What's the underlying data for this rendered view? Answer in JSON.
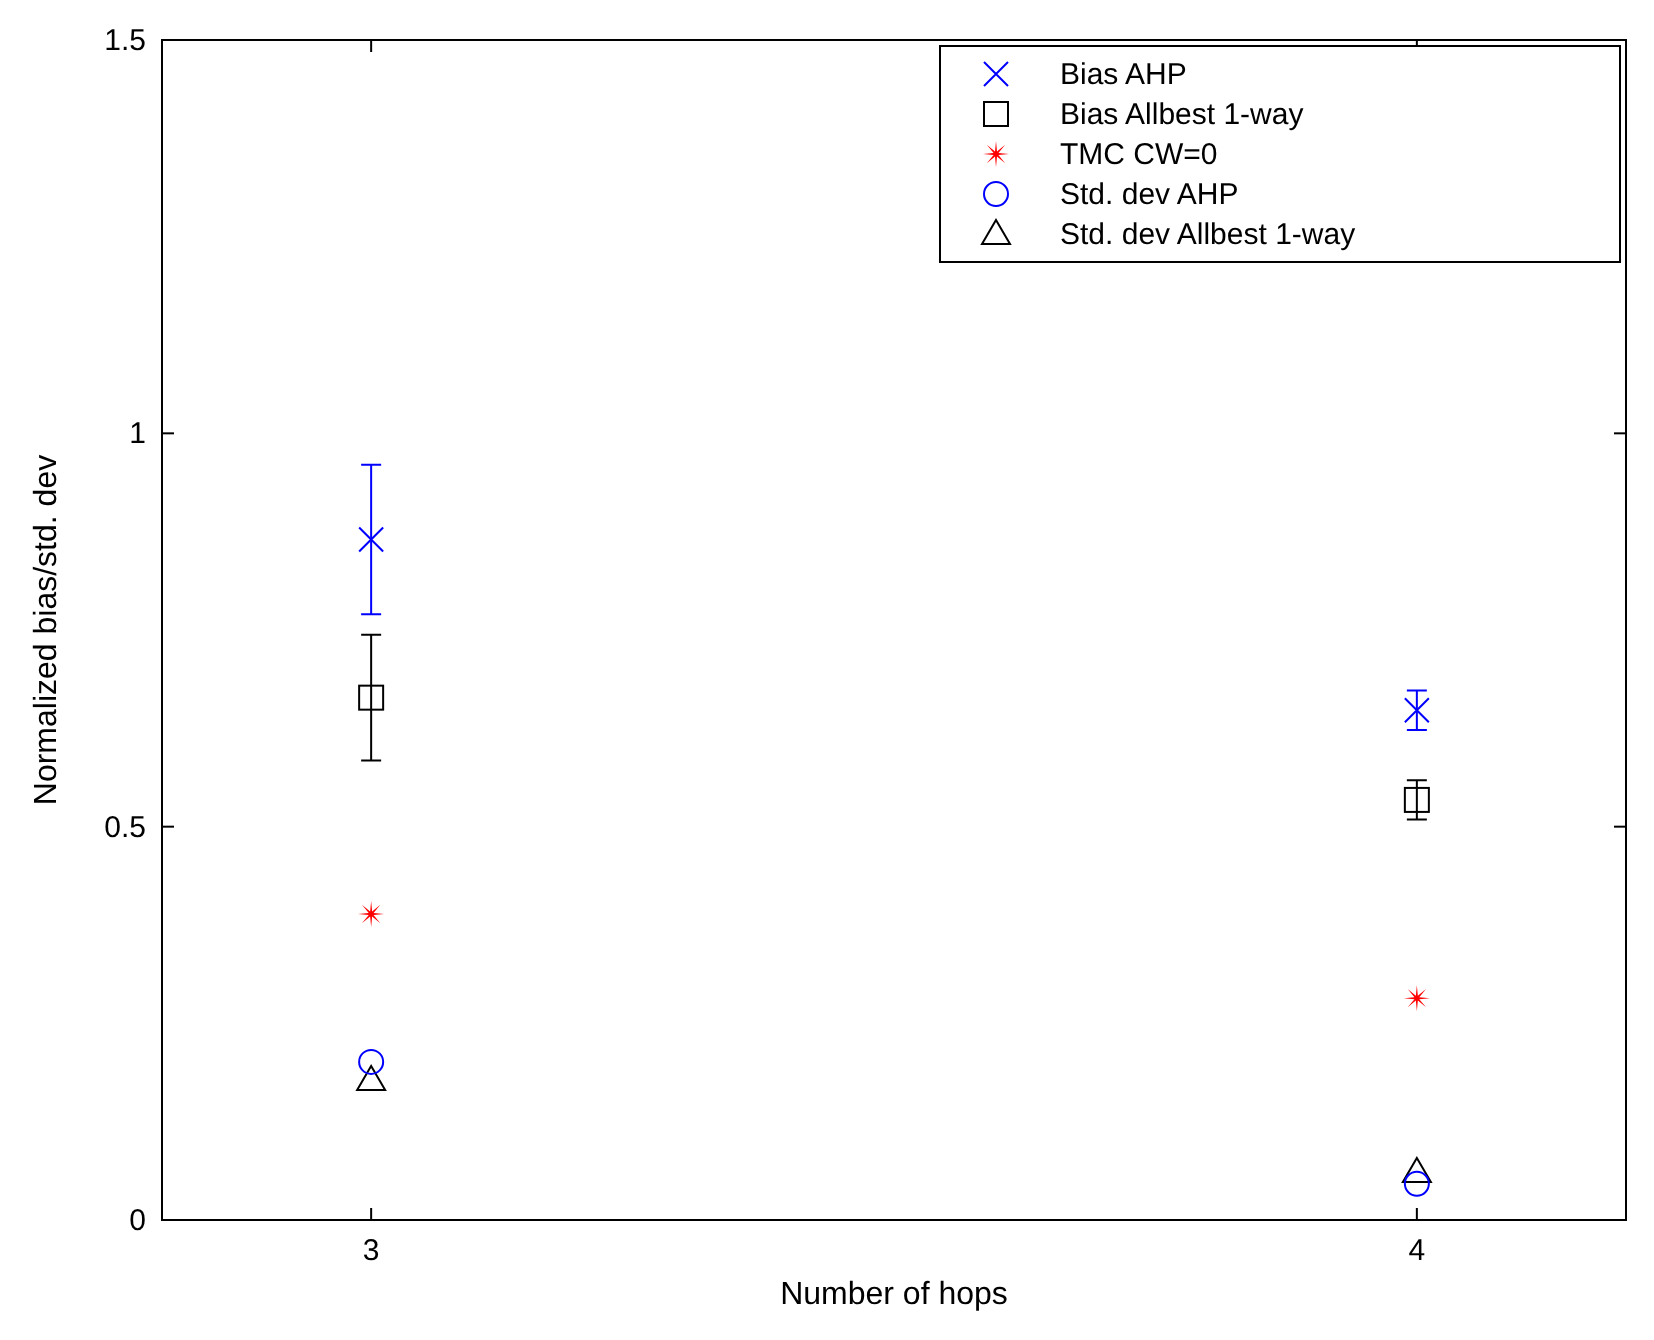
{
  "chart_data": {
    "type": "scatter",
    "xlabel": "Number of hops",
    "ylabel": "Normalized bias/std. dev",
    "x": [
      3,
      4
    ],
    "xlim": [
      2.8,
      4.2
    ],
    "xticks": [
      3,
      4
    ],
    "ylim": [
      0,
      1.5
    ],
    "yticks": [
      0,
      0.5,
      1,
      1.5
    ],
    "legend": "top right",
    "grid": false,
    "series": [
      {
        "name": "Bias AHP",
        "color": "#0000ff",
        "marker": "cross",
        "values": [
          0.865,
          0.648
        ],
        "errors": [
          0.095,
          0.025
        ]
      },
      {
        "name": "Bias Allbest 1-way",
        "color": "#000000",
        "marker": "square",
        "values": [
          0.664,
          0.534
        ],
        "errors": [
          0.08,
          0.025
        ]
      },
      {
        "name": "TMC CW=0",
        "color": "#ff0000",
        "marker": "star",
        "values": [
          0.389,
          0.282
        ]
      },
      {
        "name": "Std. dev AHP",
        "color": "#0000ff",
        "marker": "circle",
        "values": [
          0.201,
          0.046
        ]
      },
      {
        "name": "Std. dev Allbest 1-way",
        "color": "#000000",
        "marker": "triangle",
        "values": [
          0.178,
          0.061
        ]
      }
    ]
  }
}
